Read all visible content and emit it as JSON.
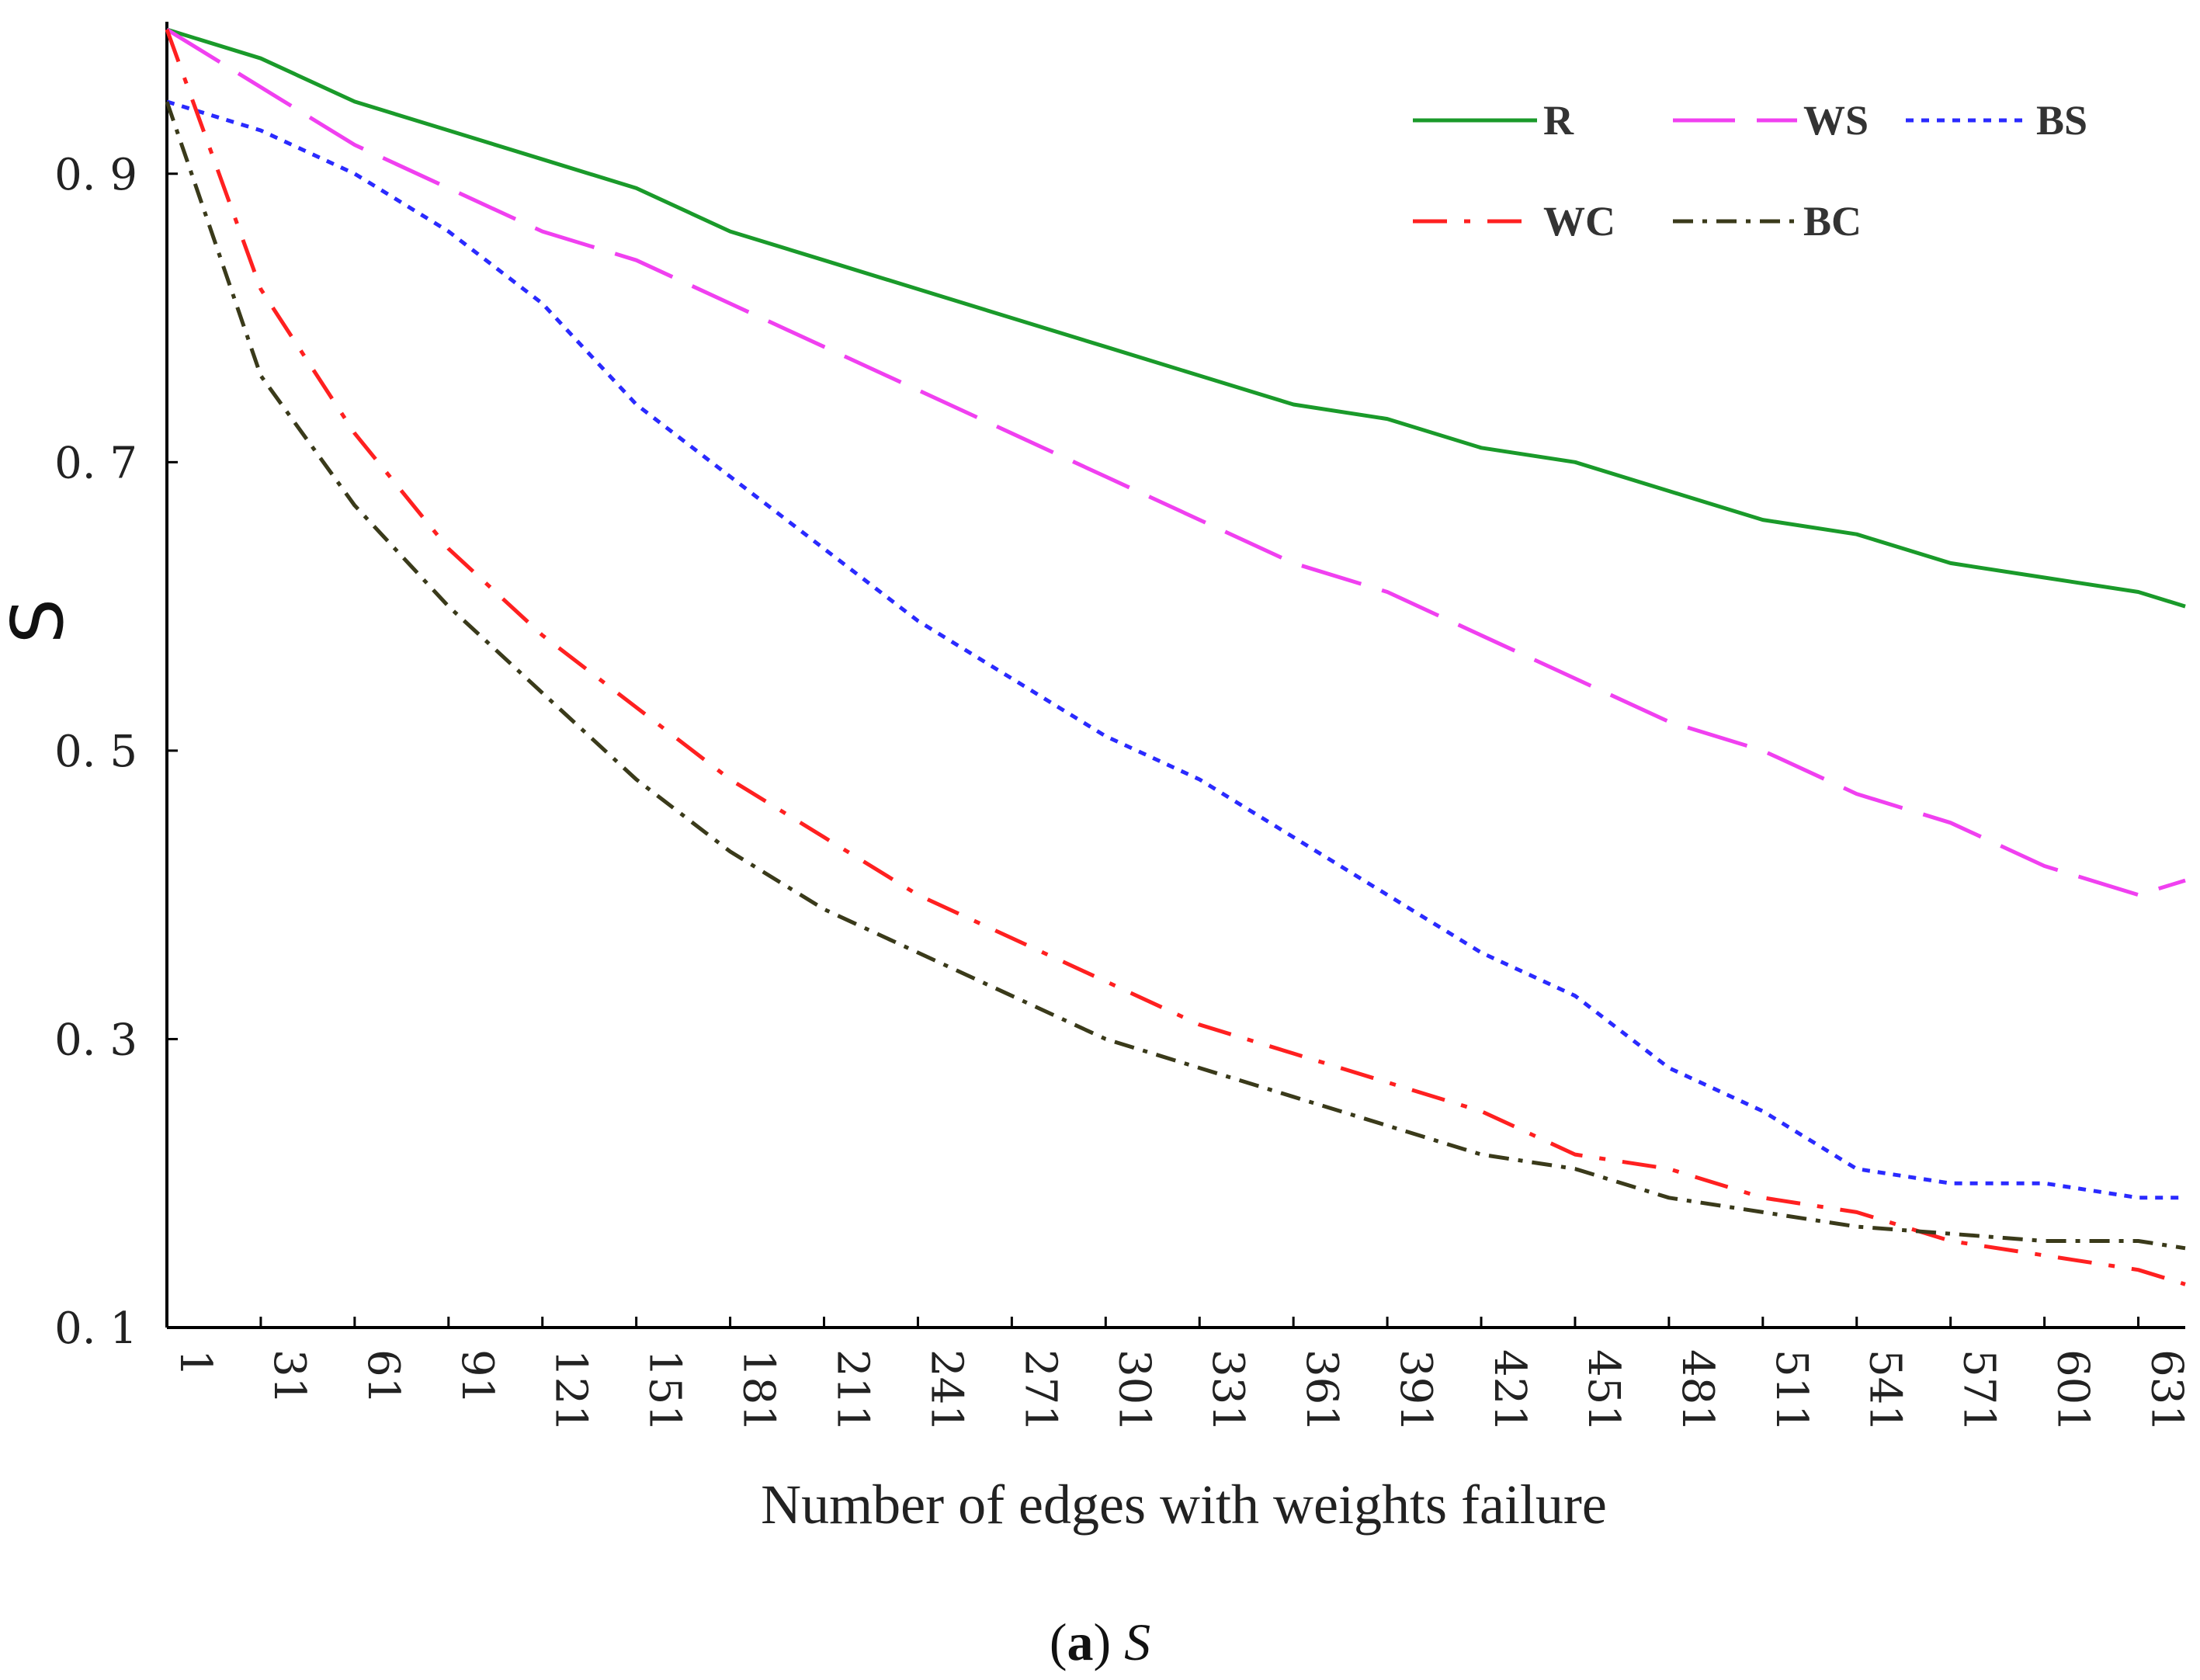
{
  "chart_data": {
    "type": "line",
    "title": "",
    "xlabel": "Number of edges with weights failure",
    "ylabel": "S",
    "caption_letter": "a",
    "caption_var": "S",
    "xlim": [
      1,
      646
    ],
    "ylim": [
      0.1,
      1.0
    ],
    "x_ticks": [
      1,
      31,
      61,
      91,
      121,
      151,
      181,
      211,
      241,
      271,
      301,
      331,
      361,
      391,
      421,
      451,
      481,
      511,
      541,
      571,
      601,
      631
    ],
    "y_ticks": [
      0.1,
      0.3,
      0.5,
      0.7,
      0.9
    ],
    "y_tick_labels": [
      "0. 1",
      "0. 3",
      "0. 5",
      "0. 7",
      "0. 9"
    ],
    "legend": {
      "position": "top-right"
    },
    "series": [
      {
        "name": "R",
        "color": "#1a9a2a",
        "dash": "solid",
        "x": [
          1,
          31,
          61,
          91,
          121,
          151,
          181,
          211,
          241,
          271,
          301,
          331,
          361,
          391,
          421,
          451,
          481,
          511,
          541,
          571,
          601,
          631,
          646
        ],
        "y": [
          1.0,
          0.98,
          0.95,
          0.93,
          0.91,
          0.89,
          0.86,
          0.84,
          0.82,
          0.8,
          0.78,
          0.76,
          0.74,
          0.73,
          0.71,
          0.7,
          0.68,
          0.66,
          0.65,
          0.63,
          0.62,
          0.61,
          0.6
        ]
      },
      {
        "name": "WS",
        "color": "#f040f0",
        "dash": "long",
        "x": [
          1,
          31,
          61,
          91,
          121,
          151,
          181,
          211,
          241,
          271,
          301,
          331,
          361,
          391,
          421,
          451,
          481,
          511,
          541,
          571,
          601,
          631,
          646
        ],
        "y": [
          1.0,
          0.96,
          0.92,
          0.89,
          0.86,
          0.84,
          0.81,
          0.78,
          0.75,
          0.72,
          0.69,
          0.66,
          0.63,
          0.61,
          0.58,
          0.55,
          0.52,
          0.5,
          0.47,
          0.45,
          0.42,
          0.4,
          0.41
        ]
      },
      {
        "name": "BS",
        "color": "#2a2aff",
        "dash": "dot",
        "x": [
          1,
          31,
          61,
          91,
          121,
          151,
          181,
          211,
          241,
          271,
          301,
          331,
          361,
          391,
          421,
          451,
          481,
          511,
          541,
          571,
          601,
          631,
          646
        ],
        "y": [
          0.95,
          0.93,
          0.9,
          0.86,
          0.81,
          0.74,
          0.69,
          0.64,
          0.59,
          0.55,
          0.51,
          0.48,
          0.44,
          0.4,
          0.36,
          0.33,
          0.28,
          0.25,
          0.21,
          0.2,
          0.2,
          0.19,
          0.19
        ]
      },
      {
        "name": "WC",
        "color": "#ff2020",
        "dash": "dashdot",
        "x": [
          1,
          31,
          61,
          91,
          121,
          151,
          181,
          211,
          241,
          271,
          301,
          331,
          361,
          391,
          421,
          451,
          481,
          511,
          541,
          571,
          601,
          631,
          646
        ],
        "y": [
          1.0,
          0.82,
          0.72,
          0.64,
          0.58,
          0.53,
          0.48,
          0.44,
          0.4,
          0.37,
          0.34,
          0.31,
          0.29,
          0.27,
          0.25,
          0.22,
          0.21,
          0.19,
          0.18,
          0.16,
          0.15,
          0.14,
          0.13
        ]
      },
      {
        "name": "BC",
        "color": "#3a3a1a",
        "dash": "dashdotdense",
        "x": [
          1,
          31,
          61,
          91,
          121,
          151,
          181,
          211,
          241,
          271,
          301,
          331,
          361,
          391,
          421,
          451,
          481,
          511,
          541,
          571,
          601,
          631,
          646
        ],
        "y": [
          0.95,
          0.76,
          0.67,
          0.6,
          0.54,
          0.48,
          0.43,
          0.39,
          0.36,
          0.33,
          0.3,
          0.28,
          0.26,
          0.24,
          0.22,
          0.21,
          0.19,
          0.18,
          0.17,
          0.165,
          0.16,
          0.16,
          0.155
        ]
      }
    ]
  }
}
